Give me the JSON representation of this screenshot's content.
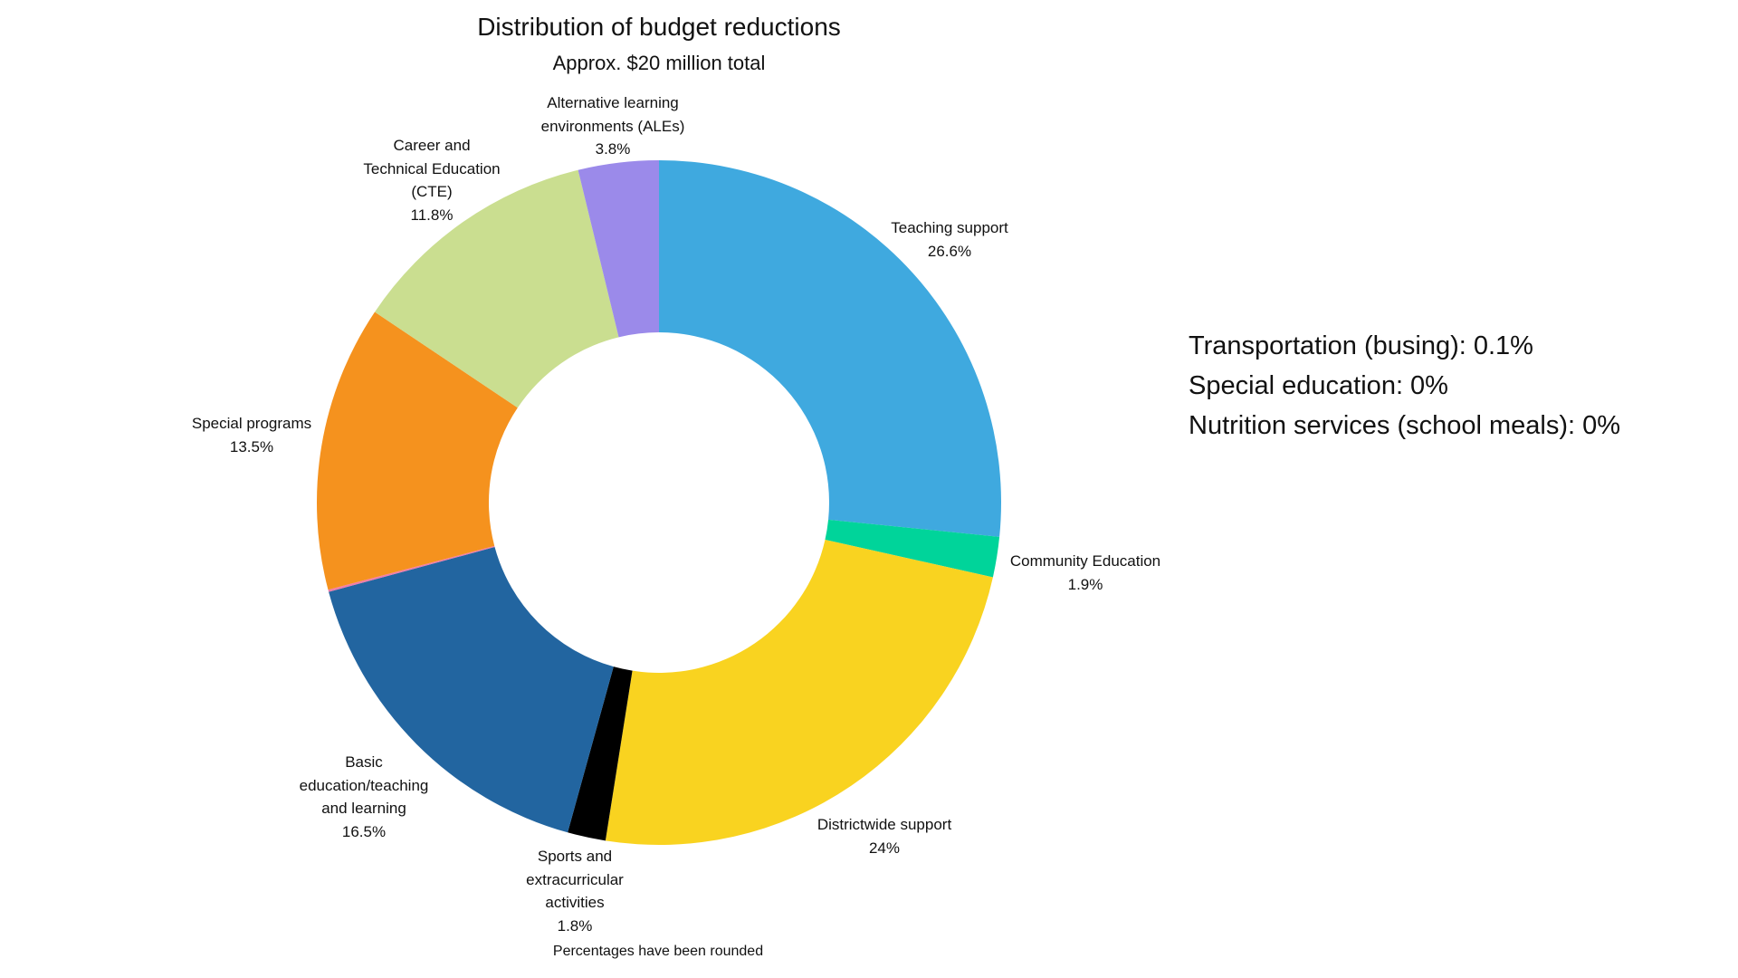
{
  "chart_data": {
    "type": "pie",
    "variant": "donut",
    "title": "Distribution of budget reductions",
    "subtitle": "Approx. $20 million total",
    "slices": [
      {
        "label": [
          "Teaching support"
        ],
        "value": 26.6,
        "value_label": "26.6%",
        "color": "#3fa9df"
      },
      {
        "label": [
          "Community Education"
        ],
        "value": 1.9,
        "value_label": "1.9%",
        "color": "#00d49a"
      },
      {
        "label": [
          "Districtwide support"
        ],
        "value": 24,
        "value_label": "24%",
        "color": "#f9d320"
      },
      {
        "label": [
          "Sports and",
          "extracurricular",
          "activities"
        ],
        "value": 1.8,
        "value_label": "1.8%",
        "color": "#000000"
      },
      {
        "label": [
          "Basic",
          "education/teaching",
          "and learning"
        ],
        "value": 16.5,
        "value_label": "16.5%",
        "color": "#2265a0"
      },
      {
        "label": [],
        "value": 0.1,
        "value_label": "",
        "color": "#f07ca8"
      },
      {
        "label": [
          "Special programs"
        ],
        "value": 13.5,
        "value_label": "13.5%",
        "color": "#f5921e"
      },
      {
        "label": [
          "Career and",
          "Technical Education",
          "(CTE)"
        ],
        "value": 11.8,
        "value_label": "11.8%",
        "color": "#cade90"
      },
      {
        "label": [
          "Alternative learning",
          "environments (ALEs)"
        ],
        "value": 3.8,
        "value_label": "3.8%",
        "color": "#9b8aea"
      }
    ],
    "side_notes": [
      "Transportation (busing): 0.1%",
      "Special education: 0%",
      "Nutrition services (school meals): 0%"
    ],
    "footnote": "Percentages have been rounded",
    "legend": "none"
  }
}
